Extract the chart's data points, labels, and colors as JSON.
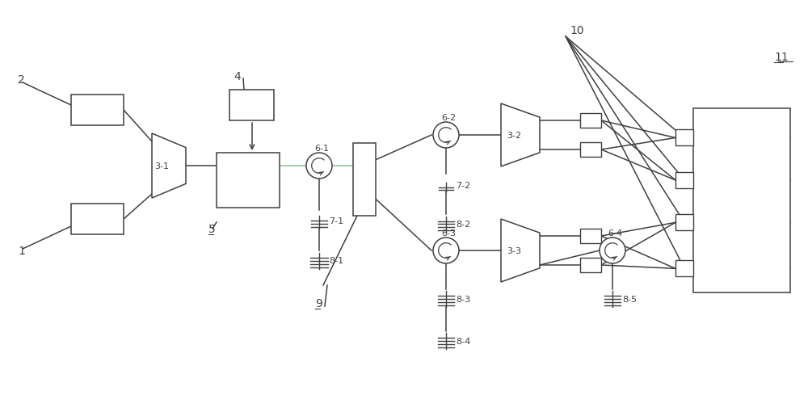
{
  "bg": "#ffffff",
  "lc": "#404040",
  "gc": "#8fbc8f",
  "pc": "#b090b0",
  "fig_w": 10.0,
  "fig_h": 5.06
}
